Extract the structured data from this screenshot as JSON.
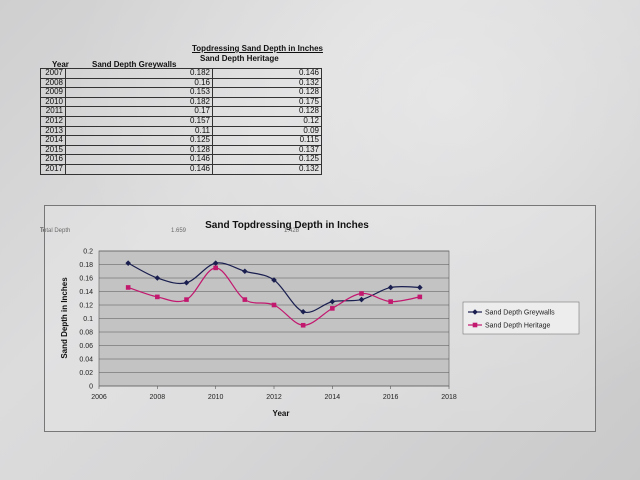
{
  "table": {
    "title": "Topdressing Sand Depth in Inches",
    "headers": {
      "year": "Year",
      "greywalls": "Sand Depth Greywalls",
      "heritage": "Sand Depth Heritage"
    },
    "rows": [
      {
        "year": "2007",
        "greywalls": "0.182",
        "heritage": "0.146"
      },
      {
        "year": "2008",
        "greywalls": "0.16",
        "heritage": "0.132"
      },
      {
        "year": "2009",
        "greywalls": "0.153",
        "heritage": "0.128"
      },
      {
        "year": "2010",
        "greywalls": "0.182",
        "heritage": "0.175"
      },
      {
        "year": "2011",
        "greywalls": "0.17",
        "heritage": "0.128"
      },
      {
        "year": "2012",
        "greywalls": "0.157",
        "heritage": "0.12"
      },
      {
        "year": "2013",
        "greywalls": "0.11",
        "heritage": "0.09"
      },
      {
        "year": "2014",
        "greywalls": "0.125",
        "heritage": "0.115"
      },
      {
        "year": "2015",
        "greywalls": "0.128",
        "heritage": "0.137"
      },
      {
        "year": "2016",
        "greywalls": "0.146",
        "heritage": "0.125"
      },
      {
        "year": "2017",
        "greywalls": "0.146",
        "heritage": "0.132"
      }
    ],
    "total_label": "Total Depth",
    "total_greywalls": "1.659",
    "total_heritage": "1.428"
  },
  "chart_data": {
    "type": "line",
    "title": "Sand Topdressing Depth in Inches",
    "xlabel": "Year",
    "ylabel": "Sand Depth in Inches",
    "xlim": [
      2006,
      2018
    ],
    "ylim": [
      0,
      0.2
    ],
    "x_ticks": [
      2006,
      2008,
      2010,
      2012,
      2014,
      2016,
      2018
    ],
    "y_ticks": [
      0,
      0.02,
      0.04,
      0.06,
      0.08,
      0.1,
      0.12,
      0.14,
      0.16,
      0.18,
      0.2
    ],
    "grid": true,
    "legend": "right",
    "x": [
      2007,
      2008,
      2009,
      2010,
      2011,
      2012,
      2013,
      2014,
      2015,
      2016,
      2017
    ],
    "series": [
      {
        "name": "Sand Depth Greywalls",
        "color": "#1a1f4f",
        "marker": "diamond",
        "values": [
          0.182,
          0.16,
          0.153,
          0.182,
          0.17,
          0.157,
          0.11,
          0.125,
          0.128,
          0.146,
          0.146
        ]
      },
      {
        "name": "Sand Depth Heritage",
        "color": "#c2186e",
        "marker": "square",
        "values": [
          0.146,
          0.132,
          0.128,
          0.175,
          0.128,
          0.12,
          0.09,
          0.115,
          0.137,
          0.125,
          0.132
        ]
      }
    ]
  }
}
